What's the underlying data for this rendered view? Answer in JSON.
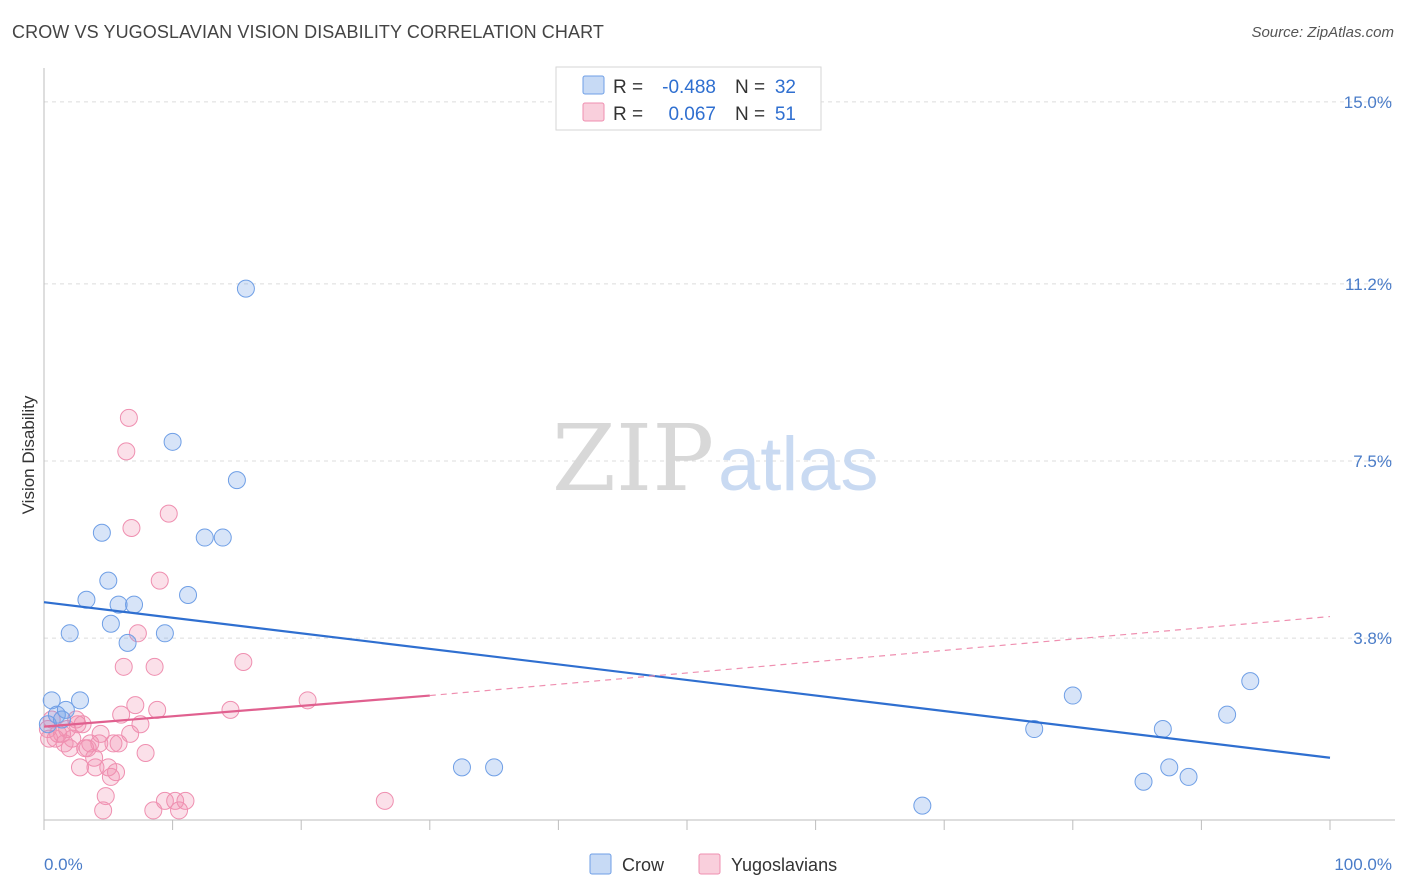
{
  "title": "CROW VS YUGOSLAVIAN VISION DISABILITY CORRELATION CHART",
  "source": "Source: ZipAtlas.com",
  "watermark": {
    "zip": "ZIP",
    "atlas": "atlas"
  },
  "legend": {
    "r_label": "R =",
    "n_label": "N =",
    "rows": [
      {
        "r": "-0.488",
        "n": "32",
        "color": "#6f9fe6"
      },
      {
        "r": "0.067",
        "n": "51",
        "color": "#ef8fb0"
      }
    ]
  },
  "bottom_legend": [
    {
      "label": "Crow",
      "color": "#6f9fe6"
    },
    {
      "label": "Yugoslavians",
      "color": "#ef8fb0"
    }
  ],
  "chart_data": {
    "type": "scatter",
    "title": "CROW VS YUGOSLAVIAN VISION DISABILITY CORRELATION CHART",
    "xlabel": "",
    "ylabel": "Vision Disability",
    "xlim": [
      0,
      100
    ],
    "ylim": [
      0,
      15.5
    ],
    "x_tick_labels": [
      "0.0%",
      "100.0%"
    ],
    "y_ticks": [
      3.8,
      7.5,
      11.2,
      15.0
    ],
    "y_tick_labels": [
      "3.8%",
      "7.5%",
      "11.2%",
      "15.0%"
    ],
    "grid": true,
    "legend_position": "top-center",
    "series": [
      {
        "name": "Crow",
        "color": "#6f9fe6",
        "r": -0.488,
        "n": 32,
        "trend": {
          "x": [
            0,
            100
          ],
          "y": [
            4.55,
            1.3
          ],
          "dashed_from": null
        },
        "points": [
          [
            0.3,
            2.0
          ],
          [
            0.6,
            2.5
          ],
          [
            1.4,
            2.1
          ],
          [
            1.7,
            2.3
          ],
          [
            2.0,
            3.9
          ],
          [
            2.8,
            2.5
          ],
          [
            3.3,
            4.6
          ],
          [
            4.5,
            6.0
          ],
          [
            5.0,
            5.0
          ],
          [
            5.2,
            4.1
          ],
          [
            5.8,
            4.5
          ],
          [
            6.5,
            3.7
          ],
          [
            7.0,
            4.5
          ],
          [
            9.4,
            3.9
          ],
          [
            10.0,
            7.9
          ],
          [
            11.2,
            4.7
          ],
          [
            12.5,
            5.9
          ],
          [
            13.9,
            5.9
          ],
          [
            15.0,
            7.1
          ],
          [
            15.7,
            11.1
          ],
          [
            32.5,
            1.1
          ],
          [
            35.0,
            1.1
          ],
          [
            68.3,
            0.3
          ],
          [
            77.0,
            1.9
          ],
          [
            80.0,
            2.6
          ],
          [
            85.5,
            0.8
          ],
          [
            87.0,
            1.9
          ],
          [
            87.5,
            1.1
          ],
          [
            89.0,
            0.9
          ],
          [
            92.0,
            2.2
          ],
          [
            93.8,
            2.9
          ],
          [
            1.0,
            2.2
          ]
        ]
      },
      {
        "name": "Yugoslavians",
        "color": "#ef8fb0",
        "r": 0.067,
        "n": 51,
        "trend": {
          "x": [
            0,
            30
          ],
          "y": [
            1.95,
            2.6
          ],
          "dashed_to": [
            100,
            4.25
          ]
        },
        "points": [
          [
            0.3,
            1.9
          ],
          [
            0.4,
            1.7
          ],
          [
            0.6,
            2.1
          ],
          [
            0.9,
            1.7
          ],
          [
            1.1,
            1.8
          ],
          [
            1.4,
            1.8
          ],
          [
            1.6,
            1.6
          ],
          [
            1.8,
            1.9
          ],
          [
            2.0,
            1.5
          ],
          [
            2.2,
            1.7
          ],
          [
            2.5,
            2.1
          ],
          [
            2.6,
            2.0
          ],
          [
            2.8,
            1.1
          ],
          [
            3.0,
            2.0
          ],
          [
            3.2,
            1.5
          ],
          [
            3.4,
            1.5
          ],
          [
            3.6,
            1.6
          ],
          [
            3.9,
            1.3
          ],
          [
            4.0,
            1.1
          ],
          [
            4.3,
            1.6
          ],
          [
            4.4,
            1.8
          ],
          [
            4.6,
            0.2
          ],
          [
            4.8,
            0.5
          ],
          [
            5.0,
            1.1
          ],
          [
            5.2,
            0.9
          ],
          [
            5.4,
            1.6
          ],
          [
            5.6,
            1.0
          ],
          [
            5.8,
            1.6
          ],
          [
            6.0,
            2.2
          ],
          [
            6.2,
            3.2
          ],
          [
            6.4,
            7.7
          ],
          [
            6.6,
            8.4
          ],
          [
            6.7,
            1.8
          ],
          [
            6.8,
            6.1
          ],
          [
            7.1,
            2.4
          ],
          [
            7.3,
            3.9
          ],
          [
            7.5,
            2.0
          ],
          [
            7.9,
            1.4
          ],
          [
            8.5,
            0.2
          ],
          [
            8.6,
            3.2
          ],
          [
            8.8,
            2.3
          ],
          [
            9.0,
            5.0
          ],
          [
            9.4,
            0.4
          ],
          [
            9.7,
            6.4
          ],
          [
            10.2,
            0.4
          ],
          [
            10.5,
            0.2
          ],
          [
            11.0,
            0.4
          ],
          [
            14.5,
            2.3
          ],
          [
            15.5,
            3.3
          ],
          [
            20.5,
            2.5
          ],
          [
            26.5,
            0.4
          ]
        ]
      }
    ]
  }
}
